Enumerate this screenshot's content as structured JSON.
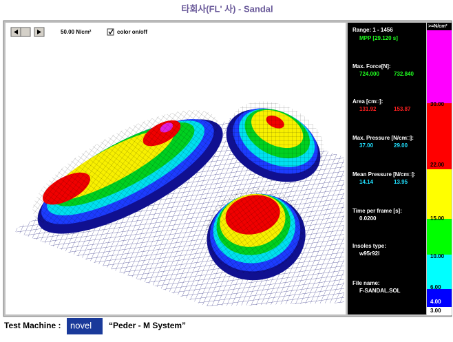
{
  "header": {
    "title": "타회사(FL' 사) - Sandal"
  },
  "toolbar": {
    "scale": "50.00 N/cm²",
    "checkbox": "color on/off"
  },
  "panel": {
    "range": "Range: 1 - 1456",
    "mpp": "MPP [29.120 s]",
    "fields": [
      {
        "label": "Max. Force[N]:",
        "values": [
          "724.000",
          "732.840"
        ]
      },
      {
        "label": "Area [cm□]:",
        "values": [
          "131.92",
          "153.87"
        ]
      },
      {
        "label": "Max. Pressure [N/cm□]:",
        "values": [
          "37.00",
          "29.00"
        ]
      },
      {
        "label": "Mean Pressure [N/cm□]:",
        "values": [
          "14.14",
          "13.95"
        ]
      },
      {
        "label": "Time per frame [s]:",
        "values": [
          "0.0200"
        ]
      },
      {
        "label": "Insoles type:",
        "values": [
          "w95r92l"
        ]
      },
      {
        "label": "File name:",
        "values": [
          "F-SANDAL.SOL"
        ]
      }
    ]
  },
  "legend": {
    "unit": ">=N/cm²",
    "labels": [
      "30.00",
      "22.00",
      "15.00",
      "10.00",
      "6.00",
      "4.00",
      "3.00"
    ]
  },
  "footer": {
    "machine": "Test Machine :",
    "logo": "novel",
    "system": "“Peder - M System”"
  }
}
